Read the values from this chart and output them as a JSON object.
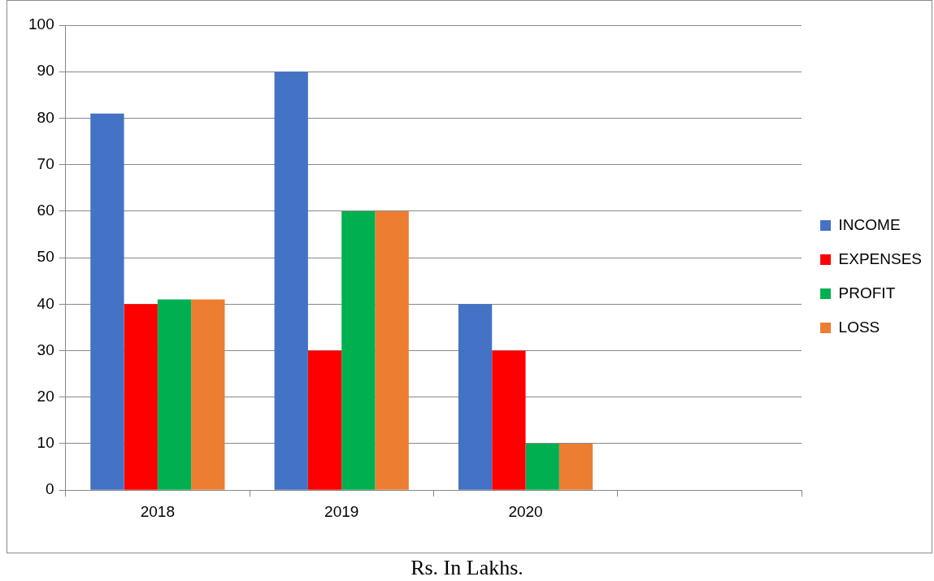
{
  "chart_data": {
    "type": "bar",
    "categories": [
      "2018",
      "2019",
      "2020",
      null
    ],
    "series": [
      {
        "name": "INCOME",
        "color": "#4472c4",
        "values": [
          81,
          90,
          40,
          null
        ]
      },
      {
        "name": "EXPENSES",
        "color": "#ff0000",
        "values": [
          40,
          30,
          30,
          null
        ]
      },
      {
        "name": "PROFIT",
        "color": "#00b050",
        "values": [
          41,
          60,
          10,
          null
        ]
      },
      {
        "name": "LOSS",
        "color": "#ed7d31",
        "values": [
          41,
          60,
          10,
          null
        ]
      }
    ],
    "ylim": [
      0,
      100
    ],
    "yticks": [
      0,
      10,
      20,
      30,
      40,
      50,
      60,
      70,
      80,
      90,
      100
    ],
    "grid": "y",
    "legend": "right",
    "annotations": [
      "Rs. In Lakhs."
    ]
  }
}
